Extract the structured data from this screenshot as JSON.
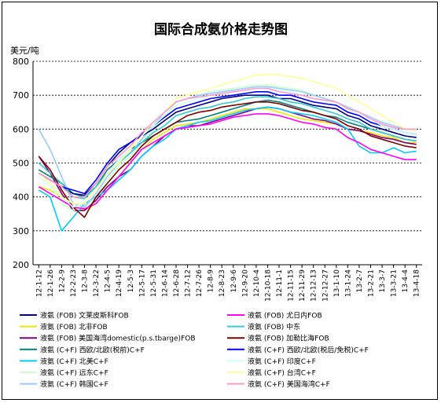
{
  "chart_data": {
    "type": "line",
    "title": "国际合成氨价格走势图",
    "ylabel": "美元/吨",
    "xlabel": "",
    "ylim": [
      200,
      800
    ],
    "yticks": [
      "200",
      "300",
      "400",
      "500",
      "600",
      "700",
      "800"
    ],
    "grid": "horizontal dashed",
    "legend": "bottom, two columns",
    "x": [
      "12-1-12",
      "12-1-26",
      "12-2-9",
      "12-2-23",
      "12-3-8",
      "12-3-22",
      "12-4-5",
      "12-4-19",
      "12-5-3",
      "12-5-17",
      "12-5-31",
      "12-6-14",
      "12-6-28",
      "12-7-12",
      "12-7-26",
      "12-8-9",
      "12-8-23",
      "12-9-6",
      "12-9-20",
      "12-10-4",
      "12-10-18",
      "12-11-1",
      "12-11-15",
      "12-11-29",
      "12-12-13",
      "12-12-27",
      "13-1-10",
      "13-1-24",
      "13-2-7",
      "13-2-21",
      "13-3-7",
      "13-3-21",
      "13-4-4",
      "13-4-18"
    ],
    "series": [
      {
        "name": "液氨 (FOB)  北非FOB",
        "color": "#f2e400",
        "values": [
          430,
          420,
          400,
          370,
          360,
          380,
          420,
          460,
          500,
          540,
          570,
          590,
          610,
          615,
          620,
          630,
          640,
          650,
          660,
          660,
          660,
          650,
          640,
          630,
          625,
          620,
          615,
          600,
          595,
          590,
          580,
          575,
          560,
          560
        ]
      },
      {
        "name": "液氨 (FOB)  美国海湾domestic(p.s.tbarge)FOB",
        "color": "#800080",
        "values": [
          520,
          470,
          410,
          360,
          360,
          390,
          430,
          460,
          480,
          520,
          550,
          580,
          600,
          610,
          610,
          620,
          630,
          640,
          650,
          660,
          665,
          660,
          650,
          640,
          630,
          625,
          615,
          600,
          595,
          585,
          575,
          570,
          560,
          555
        ]
      },
      {
        "name": "液氨 (C+F)  西欧/北欧(税前)C+F",
        "color": "#008080",
        "values": [
          480,
          460,
          440,
          410,
          400,
          430,
          480,
          510,
          540,
          560,
          580,
          600,
          620,
          625,
          630,
          640,
          650,
          660,
          670,
          680,
          685,
          680,
          670,
          660,
          650,
          640,
          635,
          620,
          610,
          600,
          590,
          580,
          570,
          565
        ]
      },
      {
        "name": "液氨 (C+F)  北美C+F",
        "color": "#00ccff",
        "values": [
          420,
          400,
          300,
          340,
          380,
          400,
          420,
          450,
          480,
          520,
          550,
          570,
          600,
          610,
          620,
          625,
          635,
          645,
          655,
          660,
          665,
          660,
          650,
          645,
          640,
          630,
          620,
          600,
          550,
          530,
          530,
          545,
          530,
          535
        ]
      },
      {
        "name": "液氨 (C+F)  远东C+F",
        "color": "#ccffcc",
        "values": [
          470,
          440,
          380,
          360,
          370,
          400,
          450,
          490,
          520,
          560,
          600,
          640,
          680,
          690,
          700,
          710,
          715,
          720,
          725,
          730,
          730,
          725,
          720,
          715,
          700,
          690,
          680,
          660,
          640,
          620,
          600,
          590,
          580,
          575
        ]
      },
      {
        "name": "液氨 (C+F)  韩国C+F",
        "color": "#99ccff",
        "values": [
          600,
          540,
          460,
          380,
          370,
          410,
          460,
          500,
          530,
          570,
          610,
          650,
          680,
          690,
          700,
          705,
          710,
          715,
          720,
          725,
          725,
          720,
          715,
          710,
          700,
          690,
          680,
          665,
          650,
          635,
          620,
          610,
          600,
          595
        ]
      },
      {
        "name": "液氨 (FOB)  文莱皮斯科FOB",
        "color": "#000080",
        "values": [
          470,
          450,
          430,
          410,
          405,
          440,
          490,
          530,
          560,
          580,
          600,
          625,
          650,
          660,
          670,
          680,
          690,
          695,
          700,
          700,
          700,
          690,
          690,
          680,
          670,
          665,
          660,
          640,
          630,
          610,
          600,
          590,
          580,
          575
        ]
      },
      {
        "name": "液氨 (FOB)  中东",
        "color": "#33cccc",
        "values": [
          500,
          470,
          440,
          400,
          395,
          430,
          470,
          500,
          530,
          560,
          590,
          610,
          640,
          650,
          660,
          665,
          675,
          680,
          690,
          695,
          695,
          690,
          680,
          675,
          665,
          655,
          645,
          630,
          620,
          600,
          590,
          580,
          570,
          565
        ]
      },
      {
        "name": "液氨 (FOB)  尤日内FOB",
        "color": "#ff00ff",
        "values": [
          430,
          410,
          390,
          370,
          365,
          380,
          420,
          460,
          500,
          540,
          560,
          580,
          600,
          605,
          610,
          615,
          625,
          635,
          640,
          645,
          645,
          640,
          630,
          620,
          615,
          605,
          600,
          575,
          560,
          540,
          530,
          520,
          510,
          510
        ]
      },
      {
        "name": "液氨 (FOB)  加勒比海FOB",
        "color": "#800000",
        "values": [
          520,
          480,
          420,
          370,
          340,
          400,
          440,
          480,
          510,
          550,
          580,
          600,
          620,
          640,
          650,
          655,
          665,
          670,
          675,
          680,
          680,
          675,
          665,
          655,
          650,
          640,
          630,
          610,
          600,
          580,
          570,
          560,
          550,
          545
        ]
      },
      {
        "name": "液氨 (C+F)  西欧/北欧(税后/免税)C+F",
        "color": "#0000ff",
        "values": [
          470,
          450,
          430,
          420,
          410,
          450,
          500,
          540,
          560,
          585,
          610,
          635,
          660,
          670,
          680,
          690,
          695,
          700,
          705,
          710,
          710,
          700,
          700,
          690,
          680,
          675,
          670,
          650,
          640,
          620,
          610,
          600,
          590,
          585
        ]
      },
      {
        "name": "液氨 (C+F)  印度C+F",
        "color": "#ccffff",
        "values": [
          460,
          430,
          400,
          370,
          380,
          420,
          470,
          510,
          540,
          580,
          610,
          640,
          670,
          680,
          690,
          700,
          705,
          710,
          715,
          720,
          720,
          715,
          710,
          700,
          690,
          685,
          680,
          660,
          650,
          630,
          610,
          600,
          590,
          585
        ]
      },
      {
        "name": "液氨 (C+F)  台湾C+F",
        "color": "#ffff99",
        "values": [
          470,
          440,
          400,
          380,
          380,
          420,
          470,
          500,
          540,
          580,
          620,
          650,
          690,
          700,
          710,
          720,
          730,
          740,
          750,
          760,
          760,
          760,
          755,
          750,
          740,
          730,
          720,
          700,
          680,
          660,
          640,
          620,
          600,
          595
        ]
      },
      {
        "name": "液氨 (C+F)  美国海湾C+F",
        "color": "#ff99cc",
        "values": [
          470,
          450,
          430,
          400,
          400,
          440,
          490,
          520,
          550,
          590,
          620,
          650,
          680,
          690,
          695,
          700,
          705,
          710,
          715,
          720,
          720,
          710,
          705,
          700,
          690,
          685,
          680,
          660,
          650,
          630,
          615,
          605,
          600,
          600
        ]
      }
    ],
    "legend_order": [
      6,
      8,
      0,
      7,
      1,
      9,
      2,
      10,
      3,
      11,
      4,
      12,
      5,
      13
    ]
  }
}
